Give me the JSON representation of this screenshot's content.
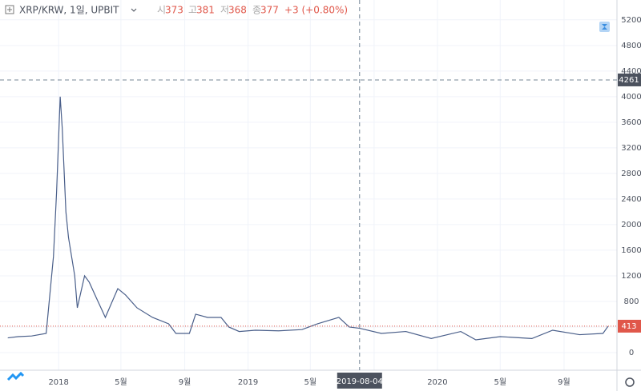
{
  "header": {
    "symbol": "XRP/KRW, 1일, UPBIT",
    "open_label": "시",
    "open": "373",
    "high_label": "고",
    "high": "381",
    "low_label": "저",
    "low": "368",
    "close_label": "종",
    "close": "377",
    "change": "+3 (+0.80%)"
  },
  "chart_data": {
    "type": "line",
    "color": "#4a5f8a",
    "x": [
      "2017-09-25",
      "2017-10-15",
      "2017-11-10",
      "2017-12-08",
      "2017-12-15",
      "2017-12-22",
      "2017-12-28",
      "2018-01-04",
      "2018-01-08",
      "2018-01-15",
      "2018-01-20",
      "2018-02-01",
      "2018-02-06",
      "2018-02-20",
      "2018-03-01",
      "2018-03-15",
      "2018-04-01",
      "2018-04-25",
      "2018-05-10",
      "2018-06-01",
      "2018-07-01",
      "2018-08-01",
      "2018-08-15",
      "2018-09-10",
      "2018-09-22",
      "2018-10-15",
      "2018-11-10",
      "2018-11-25",
      "2018-12-15",
      "2019-01-15",
      "2019-03-01",
      "2019-04-15",
      "2019-05-15",
      "2019-06-25",
      "2019-07-15",
      "2019-08-04",
      "2019-09-15",
      "2019-11-01",
      "2019-12-20",
      "2020-02-15",
      "2020-03-15",
      "2020-05-01",
      "2020-07-01",
      "2020-08-10",
      "2020-10-01",
      "2020-11-15",
      "2020-11-25"
    ],
    "values": [
      230,
      250,
      260,
      300,
      900,
      1500,
      2500,
      4000,
      3500,
      2200,
      1800,
      1200,
      700,
      1200,
      1100,
      850,
      550,
      1000,
      900,
      700,
      550,
      450,
      300,
      300,
      600,
      550,
      550,
      400,
      330,
      350,
      340,
      360,
      450,
      550,
      400,
      380,
      300,
      330,
      220,
      330,
      200,
      250,
      220,
      350,
      280,
      300,
      413
    ],
    "ylim": [
      -275,
      5510
    ],
    "yticks": [
      0,
      400,
      800,
      1200,
      1600,
      2000,
      2400,
      2800,
      3200,
      3600,
      4000,
      4400,
      4800,
      5200
    ],
    "xlim": [
      "2017-09-10",
      "2020-12-12"
    ],
    "xticks": [
      {
        "value": "2018-01-01",
        "label": "2018"
      },
      {
        "value": "2018-05-01",
        "label": "5월"
      },
      {
        "value": "2018-09-01",
        "label": "9월"
      },
      {
        "value": "2019-01-01",
        "label": "2019"
      },
      {
        "value": "2019-05-01",
        "label": "5월"
      },
      {
        "value": "2019-09-01",
        "label": "9월"
      },
      {
        "value": "2020-01-01",
        "label": "2020"
      },
      {
        "value": "2020-05-01",
        "label": "5월"
      },
      {
        "value": "2020-09-01",
        "label": "9월"
      }
    ],
    "grid": true,
    "last_price": 413,
    "crosshair": {
      "x": "2019-08-04",
      "y": 4261
    }
  }
}
